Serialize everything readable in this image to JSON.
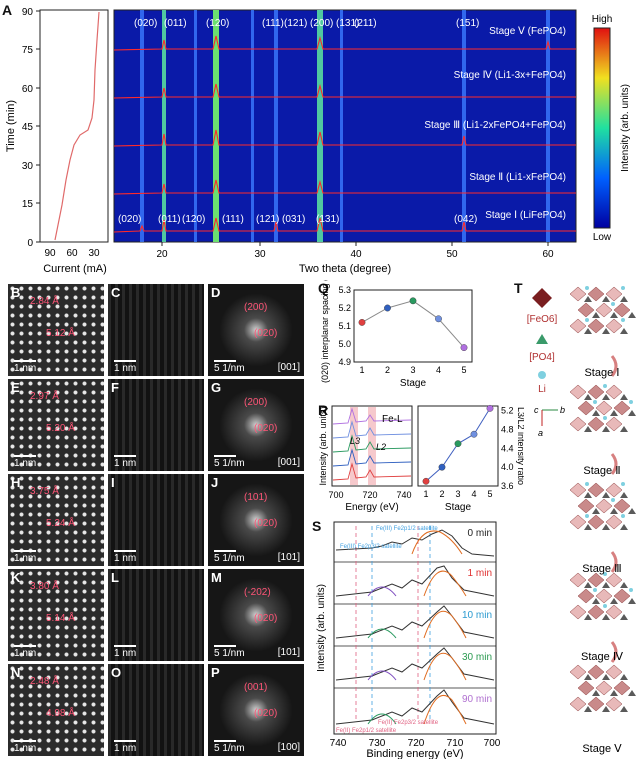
{
  "panel_a": {
    "label": "A",
    "current_axis": {
      "title": "Current (mA)",
      "ticks": [
        "90",
        "60",
        "30"
      ]
    },
    "time_axis": {
      "title": "Time (min)",
      "ticks": [
        "0",
        "15",
        "30",
        "45",
        "60",
        "75",
        "90"
      ]
    },
    "xrd_axis": {
      "title": "Two theta (degree)",
      "ticks": [
        "20",
        "30",
        "40",
        "50",
        "60"
      ]
    },
    "top_peaks": [
      "(020)",
      "(011)",
      "(120)",
      "(111)",
      "(121)",
      "(200)",
      "(131)",
      "(211)",
      "(151)"
    ],
    "bottom_peaks": [
      "(020)",
      "(011)",
      "(120)",
      "(111)",
      "(121)",
      "(031)",
      "(131)",
      "(042)"
    ],
    "stages": [
      "Stage Ⅴ (FePO4)",
      "Stage Ⅳ (Li1-3x+FePO4)",
      "Stage Ⅲ (Li1-2xFePO4+FePO4)",
      "Stage Ⅱ (Li1-xFePO4)",
      "Stage Ⅰ (LiFePO4)"
    ],
    "colorbar": {
      "title": "Intensity (arb. units)",
      "high": "High",
      "low": "Low"
    }
  },
  "tem": {
    "tiles": [
      {
        "label": "B",
        "ann1": "2.84 Å",
        "ann2": "5.12 Å"
      },
      {
        "label": "C"
      },
      {
        "label": "D",
        "ann1": "(200)",
        "ann2": "(020)",
        "zone": "[001]"
      },
      {
        "label": "E",
        "ann1": "2.97 Å",
        "ann2": "5.20 Å"
      },
      {
        "label": "F"
      },
      {
        "label": "G",
        "ann1": "(200)",
        "ann2": "(020)",
        "zone": "[001]"
      },
      {
        "label": "H",
        "ann1": "3.75 Å",
        "ann2": "5.24 Å"
      },
      {
        "label": "I"
      },
      {
        "label": "J",
        "ann1": "(101)",
        "ann2": "(020)",
        "zone": "[101]"
      },
      {
        "label": "K",
        "ann1": "3.80 Å",
        "ann2": "5.14 Å"
      },
      {
        "label": "L"
      },
      {
        "label": "M",
        "ann1": "(-202)",
        "ann2": "(020)",
        "zone": "[101]"
      },
      {
        "label": "N",
        "ann1": "2.48 Å",
        "ann2": "4.98 Å"
      },
      {
        "label": "O"
      },
      {
        "label": "P",
        "ann1": "(001)",
        "ann2": "(020)",
        "zone": "[100]"
      }
    ],
    "scale_real": "1 nm",
    "scale_recip": "5 1/nm"
  },
  "panel_q": {
    "label": "Q",
    "chart_data": {
      "type": "line",
      "x": [
        1,
        2,
        3,
        4,
        5
      ],
      "values": [
        5.12,
        5.2,
        5.24,
        5.14,
        4.98
      ],
      "xlabel": "Stage",
      "ylabel": "(020) interplanar spacing (Å)",
      "ylim": [
        4.9,
        5.3
      ],
      "yticks": [
        "4.9",
        "5.0",
        "5.1",
        "5.2",
        "5.3"
      ],
      "xticks": [
        "1",
        "2",
        "3",
        "4",
        "5"
      ],
      "point_colors": [
        "#e04040",
        "#3060c0",
        "#2a9a60",
        "#7090e0",
        "#b070e0"
      ]
    }
  },
  "panel_r": {
    "label": "R",
    "left": {
      "title": "Fe-L",
      "l3": "L3",
      "l2": "L2",
      "xlabel": "Energy (eV)",
      "ylabel": "Intensity (arb. units)",
      "xticks": [
        "700",
        "720",
        "740"
      ]
    },
    "chart_data": {
      "type": "line",
      "x": [
        1,
        2,
        3,
        4,
        5
      ],
      "values": [
        3.7,
        4.0,
        4.5,
        4.7,
        5.25
      ],
      "xlabel": "Stage",
      "ylabel": "L3/L2 intensity ratio",
      "ylim": [
        3.6,
        5.3
      ],
      "yticks": [
        "3.6",
        "4.0",
        "4.4",
        "4.8",
        "5.2"
      ],
      "xticks": [
        "1",
        "2",
        "3",
        "4",
        "5"
      ]
    }
  },
  "panel_s": {
    "label": "S",
    "xlabel": "Binding energy (eV)",
    "ylabel": "Intensity (arb. units)",
    "xticks": [
      "740",
      "730",
      "720",
      "710",
      "700"
    ],
    "times": [
      {
        "text": "0 min",
        "color": "#222222"
      },
      {
        "text": "1 min",
        "color": "#e03030"
      },
      {
        "text": "10 min",
        "color": "#2a9ad0"
      },
      {
        "text": "30 min",
        "color": "#2a9a50"
      },
      {
        "text": "90 min",
        "color": "#b070d0"
      }
    ],
    "top_notes": [
      "Fe(III) Fe2p3/2 satellite",
      "Fe(III) Fe2p1/2 satellite"
    ],
    "bottom_notes": [
      "Fe(II) Fe2p1/2 satellite",
      "Fe(II) Fe2p3/2 satellite"
    ]
  },
  "panel_t": {
    "label": "T",
    "legend": [
      "[FeO6]",
      "[PO4]",
      "Li"
    ],
    "axes": [
      "c",
      "b",
      "a"
    ],
    "stages": [
      "Stage Ⅰ",
      "Stage Ⅱ",
      "Stage Ⅲ",
      "Stage Ⅳ",
      "Stage Ⅴ"
    ]
  }
}
